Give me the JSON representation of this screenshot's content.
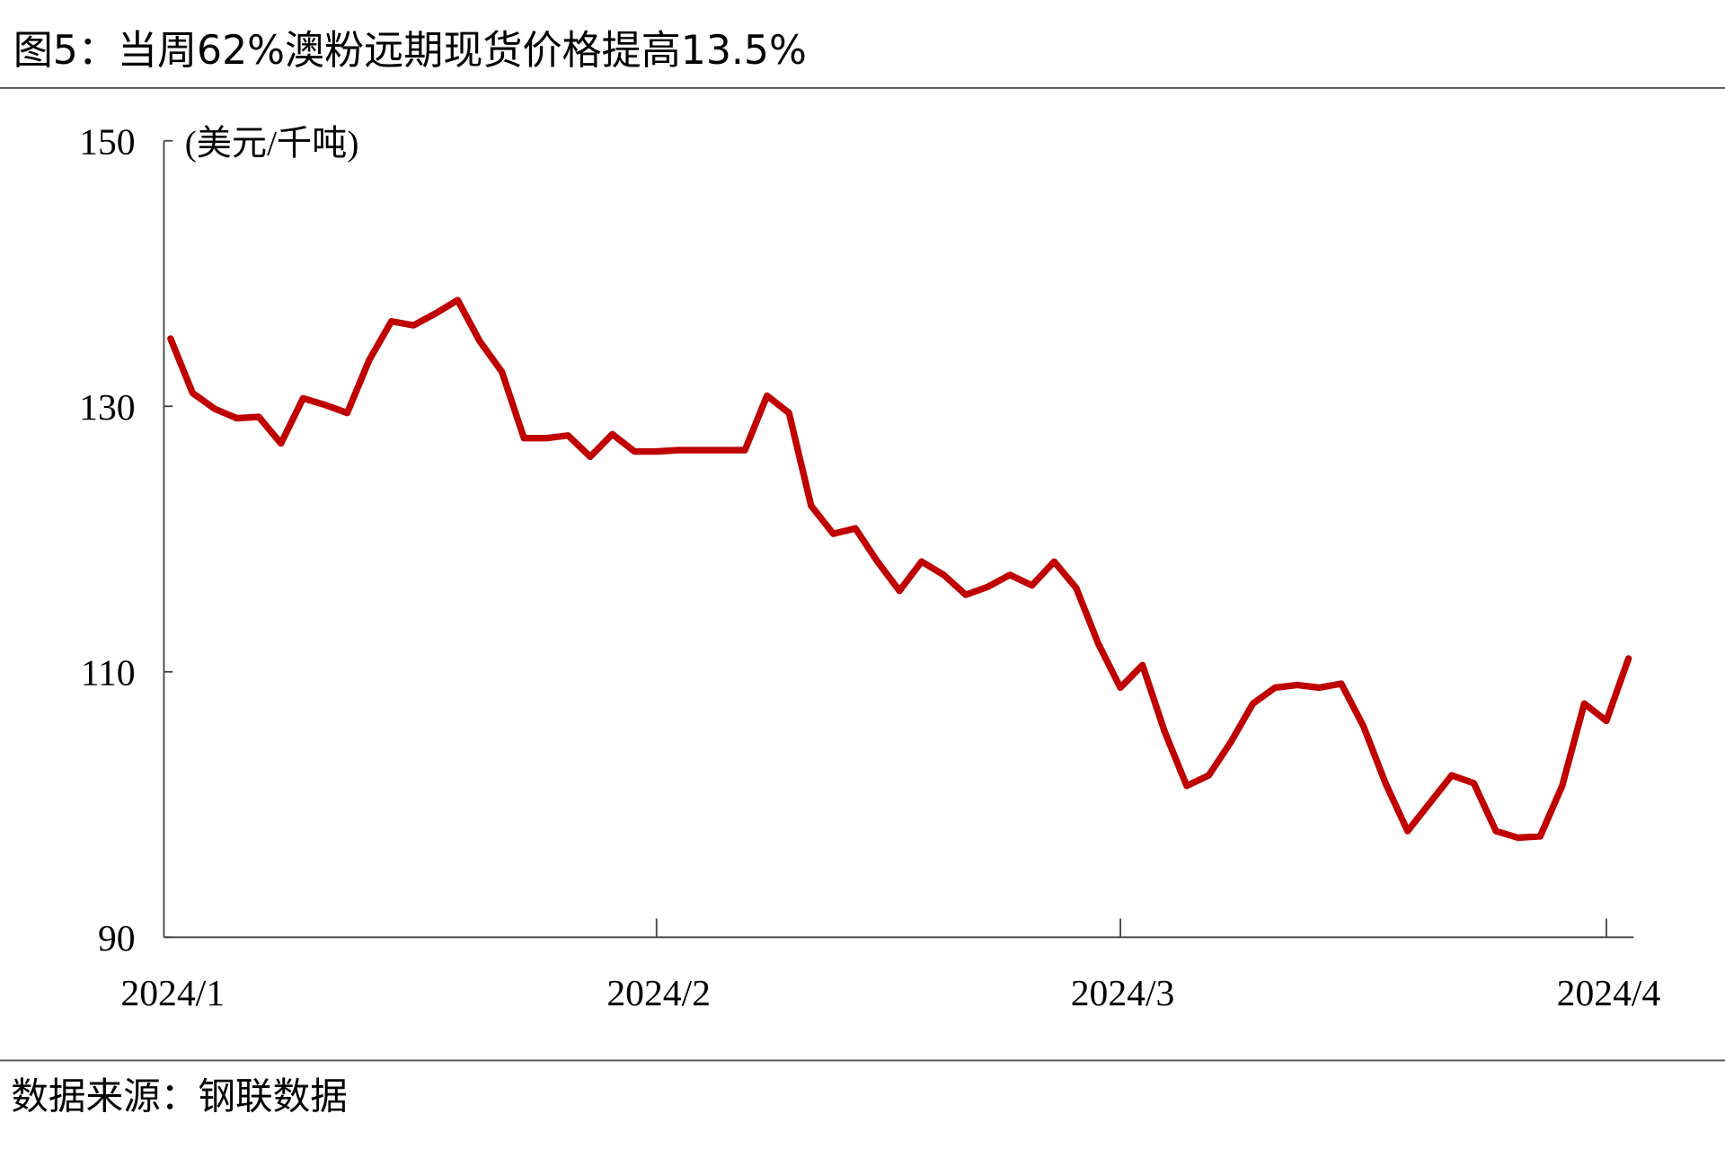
{
  "chart_data": {
    "type": "line",
    "title": "图5：当周62%澳粉远期现货价格提高13.5%",
    "y_label": "(美元/千吨)",
    "source": "数据来源：钢联数据",
    "categories": [
      "2024/1",
      null,
      null,
      null,
      null,
      null,
      null,
      null,
      null,
      null,
      null,
      null,
      null,
      null,
      null,
      null,
      null,
      null,
      null,
      null,
      null,
      null,
      "2024/2",
      null,
      null,
      null,
      null,
      null,
      null,
      null,
      null,
      null,
      null,
      null,
      null,
      null,
      null,
      null,
      null,
      null,
      null,
      null,
      null,
      "2024/3",
      null,
      null,
      null,
      null,
      null,
      null,
      null,
      null,
      null,
      null,
      null,
      null,
      null,
      null,
      null,
      null,
      null,
      null,
      null,
      null,
      null,
      "2024/4",
      null
    ],
    "series": [
      {
        "name": "62%澳粉远期现货价格",
        "color": "#c00000",
        "values": [
          135.1,
          131.0,
          129.8,
          129.1,
          129.2,
          127.2,
          130.6,
          130.1,
          129.5,
          133.5,
          136.4,
          136.1,
          137.0,
          138.0,
          134.9,
          132.6,
          127.6,
          127.6,
          127.8,
          126.2,
          127.9,
          126.6,
          126.6,
          126.7,
          126.7,
          126.7,
          126.7,
          130.8,
          129.5,
          122.5,
          120.4,
          120.8,
          118.3,
          116.1,
          118.3,
          117.3,
          115.8,
          116.4,
          117.3,
          116.5,
          118.3,
          116.3,
          112.1,
          108.8,
          110.5,
          105.5,
          101.4,
          102.2,
          104.7,
          107.6,
          108.8,
          109.0,
          108.8,
          109.1,
          105.9,
          101.6,
          98.0,
          100.1,
          102.2,
          101.6,
          98.0,
          97.5,
          97.6,
          101.4,
          107.6,
          106.3,
          111.0
        ]
      }
    ],
    "ylim": [
      90,
      150
    ],
    "yticks": [
      90,
      110,
      130,
      150
    ],
    "grid": false
  }
}
